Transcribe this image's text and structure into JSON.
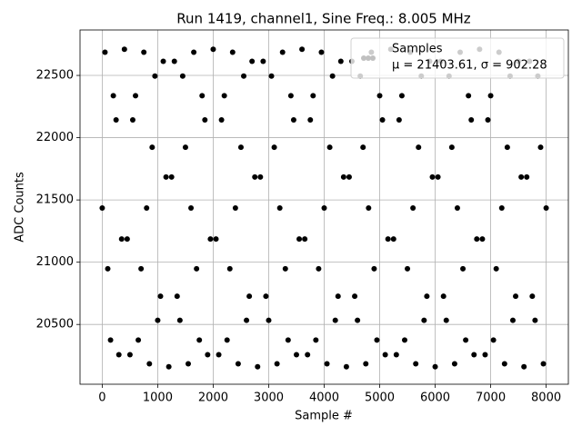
{
  "chart_data": {
    "type": "scatter",
    "title": "Run 1419, channel1, Sine Freq.: 8.005 MHz",
    "xlabel": "Sample #",
    "ylabel": "ADC Counts",
    "xlim": [
      -400,
      8400
    ],
    "ylim": [
      20020,
      22865
    ],
    "xticks": [
      0,
      1000,
      2000,
      3000,
      4000,
      5000,
      6000,
      7000,
      8000
    ],
    "yticks": [
      20500,
      21000,
      21500,
      22000,
      22500
    ],
    "grid": true,
    "legend": "upper right",
    "legend_note": "μ = 21403.61, σ = 902.28",
    "x": [
      0,
      50,
      100,
      150,
      200,
      250,
      300,
      350,
      400,
      450,
      500,
      550,
      600,
      650,
      700,
      750,
      800,
      850,
      900,
      950,
      1000,
      1050,
      1100,
      1150,
      1200,
      1250,
      1300,
      1350,
      1400,
      1450,
      1500,
      1550,
      1600,
      1650,
      1700,
      1750,
      1800,
      1850,
      1900,
      1950,
      2000,
      2050,
      2100,
      2150,
      2200,
      2250,
      2300,
      2350,
      2400,
      2450,
      2500,
      2550,
      2600,
      2650,
      2700,
      2750,
      2800,
      2850,
      2900,
      2950,
      3000,
      3050,
      3100,
      3150,
      3200,
      3250,
      3300,
      3350,
      3400,
      3450,
      3500,
      3550,
      3600,
      3650,
      3700,
      3750,
      3800,
      3850,
      3900,
      3950,
      4000,
      4050,
      4100,
      4150,
      4200,
      4250,
      4300,
      4350,
      4400,
      4450,
      4500,
      4550,
      4600,
      4650,
      4700,
      4750,
      4800,
      4850,
      4900,
      4950,
      5000,
      5050,
      5100,
      5150,
      5200,
      5250,
      5300,
      5350,
      5400,
      5450,
      5500,
      5550,
      5600,
      5650,
      5700,
      5750,
      5800,
      5850,
      5900,
      5950,
      6000,
      6050,
      6100,
      6150,
      6200,
      6250,
      6300,
      6350,
      6400,
      6450,
      6500,
      6550,
      6600,
      6650,
      6700,
      6750,
      6800,
      6850,
      6900,
      6950,
      7000,
      7050,
      7100,
      7150,
      7200,
      7250,
      7300,
      7350,
      7400,
      7450,
      7500,
      7550,
      7600,
      7650,
      7700,
      7750,
      7800,
      7850,
      7900,
      7950,
      8000
    ],
    "series": [
      {
        "name": "Samples",
        "color": "#000000",
        "legend_color": "#c0c0c0",
        "values": [
          21435,
          22686,
          20947,
          20375,
          22337,
          22143,
          20257,
          21186,
          22710,
          21186,
          20257,
          22143,
          22337,
          20375,
          20947,
          22686,
          21435,
          20184,
          21923,
          22495,
          20533,
          20727,
          22613,
          21684,
          20160,
          21684,
          22613,
          20727,
          20533,
          22495,
          21923,
          20184,
          21435,
          22686,
          20947,
          20375,
          22337,
          22143,
          20257,
          21186,
          22710,
          21186,
          20257,
          22143,
          22337,
          20375,
          20947,
          22686,
          21435,
          20184,
          21923,
          22495,
          20533,
          20727,
          22613,
          21684,
          20160,
          21684,
          22613,
          20727,
          20533,
          22495,
          21923,
          20184,
          21435,
          22686,
          20947,
          20375,
          22337,
          22143,
          20257,
          21186,
          22710,
          21186,
          20257,
          22143,
          22337,
          20375,
          20947,
          22686,
          21435,
          20184,
          21923,
          22495,
          20533,
          20727,
          22613,
          21684,
          20160,
          21684,
          22613,
          20727,
          20533,
          22495,
          21923,
          20184,
          21435,
          22686,
          20947,
          20375,
          22337,
          22143,
          20257,
          21186,
          22710,
          21186,
          20257,
          22143,
          22337,
          20375,
          20947,
          22686,
          21435,
          20184,
          21923,
          22495,
          20533,
          20727,
          22613,
          21684,
          20160,
          21684,
          22613,
          20727,
          20533,
          22495,
          21923,
          20184,
          21435,
          22686,
          20947,
          20375,
          22337,
          22143,
          20257,
          21186,
          22710,
          21186,
          20257,
          22143,
          22337,
          20375,
          20947,
          22686,
          21435,
          20184,
          21923,
          22495,
          20533,
          20727,
          22613,
          21684,
          20160,
          21684,
          22613,
          20727,
          20533,
          22495,
          21923,
          20184,
          21435
        ]
      }
    ]
  }
}
